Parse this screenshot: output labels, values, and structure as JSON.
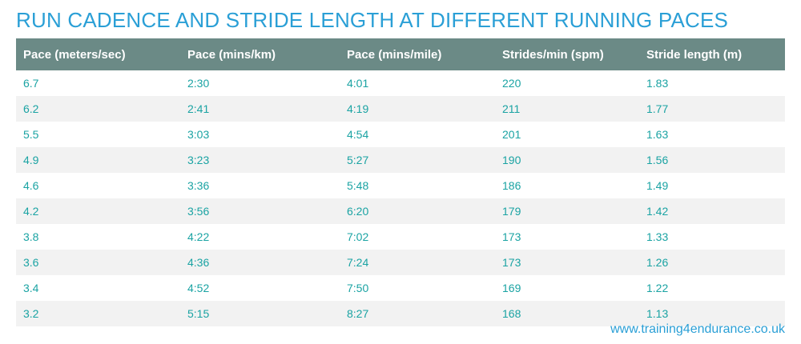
{
  "title": "RUN CADENCE AND STRIDE LENGTH AT DIFFERENT RUNNING PACES",
  "source": "www.training4endurance.co.uk",
  "colors": {
    "title": "#2a9fd6",
    "header_bg": "#6b8a86",
    "cell_text": "#1aa3a3",
    "stripe": "#f2f2f2"
  },
  "chart_data": {
    "type": "table",
    "title": "RUN CADENCE AND STRIDE LENGTH AT DIFFERENT RUNNING PACES",
    "columns": [
      "Pace (meters/sec)",
      "Pace (mins/km)",
      "Pace (mins/mile)",
      "Strides/min (spm)",
      "Stride length (m)"
    ],
    "rows": [
      [
        "6.7",
        "2:30",
        "4:01",
        "220",
        "1.83"
      ],
      [
        "6.2",
        "2:41",
        "4:19",
        "211",
        "1.77"
      ],
      [
        "5.5",
        "3:03",
        "4:54",
        "201",
        "1.63"
      ],
      [
        "4.9",
        "3:23",
        "5:27",
        "190",
        "1.56"
      ],
      [
        "4.6",
        "3:36",
        "5:48",
        "186",
        "1.49"
      ],
      [
        "4.2",
        "3:56",
        "6:20",
        "179",
        "1.42"
      ],
      [
        "3.8",
        "4:22",
        "7:02",
        "173",
        "1.33"
      ],
      [
        "3.6",
        "4:36",
        "7:24",
        "173",
        "1.26"
      ],
      [
        "3.4",
        "4:52",
        "7:50",
        "169",
        "1.22"
      ],
      [
        "3.2",
        "5:15",
        "8:27",
        "168",
        "1.13"
      ]
    ]
  }
}
